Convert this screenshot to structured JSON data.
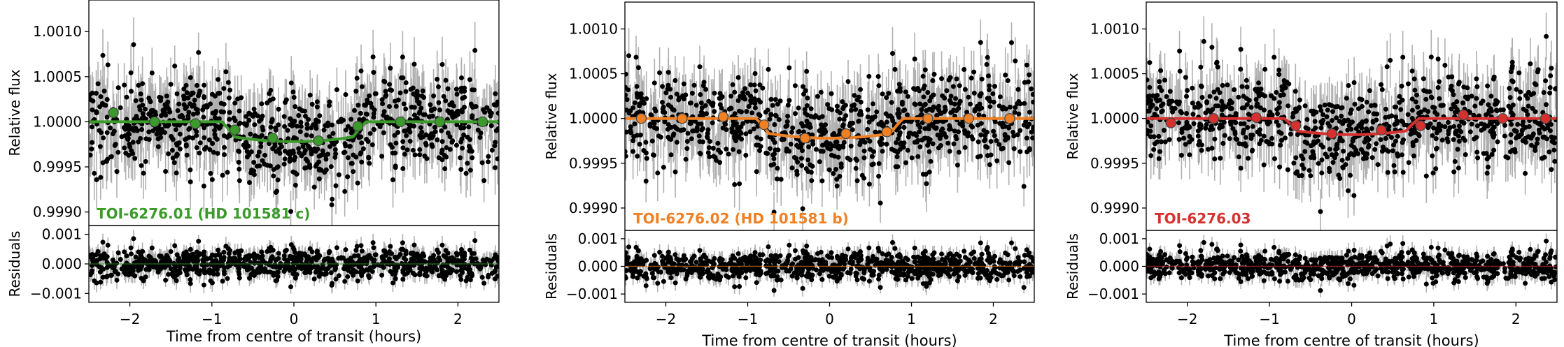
{
  "chart_data": [
    {
      "type": "scatter",
      "label": "TOI-6276.01 (HD 101581 c)",
      "label_color": "#3a9a2a",
      "model_color": "#3a9a2a",
      "xlabel": "Time from centre of transit (hours)",
      "ylabel_top": "Relative flux",
      "ylabel_bottom": "Residuals",
      "xlim": [
        -2.5,
        2.5
      ],
      "ylim_top": [
        0.99885,
        1.00135
      ],
      "ylim_bottom": [
        -0.0013,
        0.0013
      ],
      "xticks": [
        "−2",
        "−1",
        "0",
        "1",
        "2"
      ],
      "xtick_values": [
        -2,
        -1,
        0,
        1,
        2
      ],
      "yticks_top": [
        "0.9990",
        "0.9995",
        "1.0000",
        "1.0005",
        "1.0010"
      ],
      "ytick_values_top": [
        0.999,
        0.9995,
        1.0,
        1.0005,
        1.001
      ],
      "yticks_bottom": [
        "−0.001",
        "0.000",
        "0.001"
      ],
      "ytick_values_bottom": [
        -0.001,
        0.0,
        0.001
      ],
      "transit_depth": 0.00022,
      "transit_half_duration_hours": 0.88,
      "binned_x": [
        -2.2,
        -1.7,
        -1.2,
        -0.72,
        -0.26,
        0.3,
        0.78,
        1.3,
        1.78,
        2.3
      ],
      "binned_y": [
        1.0001,
        1.0,
        0.99998,
        0.99991,
        0.99982,
        0.99979,
        0.99995,
        1.0,
        1.0,
        1.0
      ]
    },
    {
      "type": "scatter",
      "label": "TOI-6276.02 (HD 101581 b)",
      "label_color": "#f08024",
      "model_color": "#f08024",
      "xlabel": "Time from centre of transit (hours)",
      "ylabel_top": "Relative flux",
      "ylabel_bottom": "Residuals",
      "xlim": [
        -2.5,
        2.5
      ],
      "ylim_top": [
        0.99875,
        1.0013
      ],
      "ylim_bottom": [
        -0.0013,
        0.0013
      ],
      "xticks": [
        "−2",
        "−1",
        "0",
        "1",
        "2"
      ],
      "xtick_values": [
        -2,
        -1,
        0,
        1,
        2
      ],
      "yticks_top": [
        "0.9990",
        "0.9995",
        "1.0000",
        "1.0005",
        "1.0010"
      ],
      "ytick_values_top": [
        0.999,
        0.9995,
        1.0,
        1.0005,
        1.001
      ],
      "yticks_bottom": [
        "−0.001",
        "0.000",
        "0.001"
      ],
      "ytick_values_bottom": [
        -0.001,
        0.0,
        0.001
      ],
      "transit_depth": 0.00022,
      "transit_half_duration_hours": 0.9,
      "binned_x": [
        -2.3,
        -1.8,
        -1.3,
        -0.8,
        -0.3,
        0.2,
        0.7,
        1.2,
        1.7,
        2.2
      ],
      "binned_y": [
        1.0,
        1.0,
        1.00002,
        0.99993,
        0.99978,
        0.99983,
        0.99985,
        1.0,
        1.0,
        1.0
      ]
    },
    {
      "type": "scatter",
      "label": "TOI-6276.03",
      "label_color": "#d6312f",
      "model_color": "#d6312f",
      "xlabel": "Time from centre of transit (hours)",
      "ylabel_top": "Relative flux",
      "ylabel_bottom": "Residuals",
      "xlim": [
        -2.5,
        2.5
      ],
      "ylim_top": [
        0.99875,
        1.0013
      ],
      "ylim_bottom": [
        -0.0013,
        0.0013
      ],
      "xticks": [
        "−2",
        "−1",
        "0",
        "1",
        "2"
      ],
      "xtick_values": [
        -2,
        -1,
        0,
        1,
        2
      ],
      "yticks_top": [
        "0.9990",
        "0.9995",
        "1.0000",
        "1.0005",
        "1.0010"
      ],
      "ytick_values_top": [
        0.999,
        0.9995,
        1.0,
        1.0005,
        1.001
      ],
      "yticks_bottom": [
        "−0.001",
        "0.000",
        "0.001"
      ],
      "ytick_values_bottom": [
        -0.001,
        0.0,
        0.001
      ],
      "transit_depth": 0.00018,
      "transit_half_duration_hours": 0.82,
      "binned_x": [
        -2.2,
        -1.68,
        -1.16,
        -0.68,
        -0.24,
        0.36,
        0.84,
        1.36,
        1.84,
        2.36
      ],
      "binned_y": [
        0.99995,
        1.0,
        1.00001,
        0.99992,
        0.99983,
        0.99987,
        0.99992,
        1.00004,
        1.0,
        1.0
      ]
    }
  ]
}
